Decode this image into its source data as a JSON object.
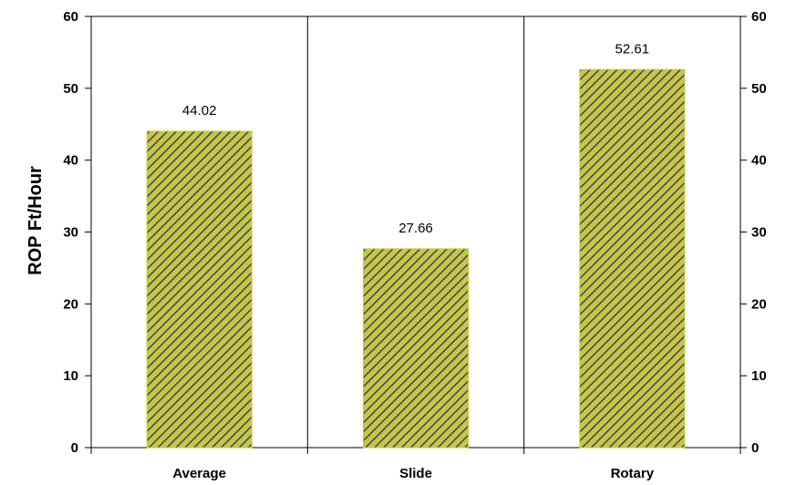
{
  "chart_data": {
    "type": "bar",
    "categories": [
      "Average",
      "Slide",
      "Rotary"
    ],
    "values": [
      44.02,
      27.66,
      52.61
    ],
    "data_labels": [
      "44.02",
      "27.66",
      "52.61"
    ],
    "ylabel": "ROP Ft/Hour",
    "ylim": [
      0,
      60
    ],
    "y_ticks": [
      "0",
      "10",
      "20",
      "30",
      "40",
      "50",
      "60"
    ],
    "secondary_y_ticks": [
      "0",
      "10",
      "20",
      "30",
      "40",
      "50",
      "60"
    ],
    "grid": "vertical category separators",
    "legend": "none",
    "bar_fill": "#c8c83c",
    "hatch_color": "#2a2a80"
  }
}
